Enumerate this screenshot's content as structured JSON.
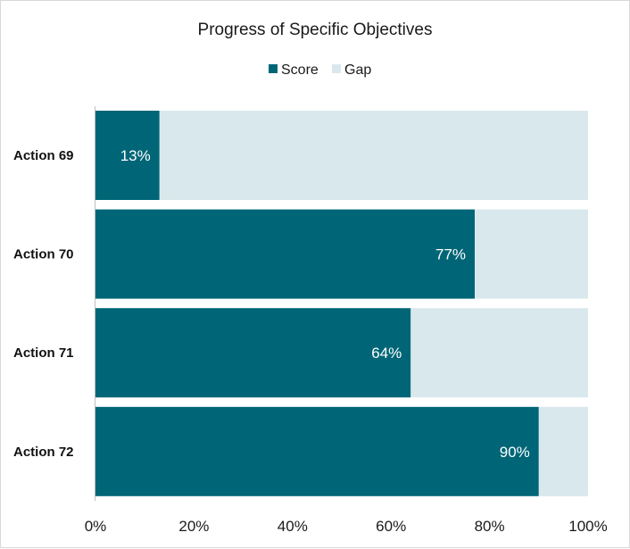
{
  "chart_data": {
    "type": "bar",
    "orientation": "horizontal",
    "stacked": "100%",
    "title": "Progress of Specific Objectives",
    "categories": [
      "Action 69",
      "Action 70",
      "Action 71",
      "Action 72"
    ],
    "series": [
      {
        "name": "Score",
        "values": [
          13,
          77,
          64,
          90
        ],
        "color": "#006677"
      },
      {
        "name": "Gap",
        "values": [
          87,
          23,
          36,
          10
        ],
        "color": "#d9e8ec"
      }
    ],
    "data_labels": [
      "13%",
      "77%",
      "64%",
      "90%"
    ],
    "x_ticks": [
      "0%",
      "20%",
      "40%",
      "60%",
      "80%",
      "100%"
    ],
    "xlim": [
      0,
      100
    ],
    "legend_position": "top",
    "grid": false,
    "xlabel": "",
    "ylabel": ""
  }
}
